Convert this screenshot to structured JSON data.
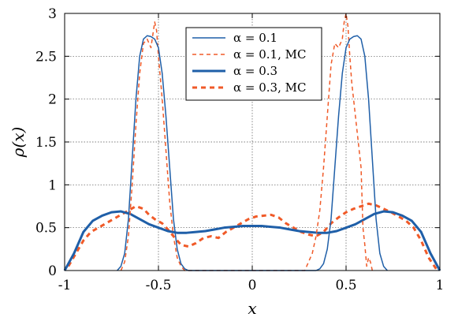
{
  "chart_data": {
    "type": "line",
    "xlabel": "x",
    "ylabel": "ρ(x)",
    "xlim": [
      -1,
      1
    ],
    "ylim": [
      0,
      3
    ],
    "x_ticks": [
      -1,
      -0.5,
      0,
      0.5,
      1
    ],
    "x_tick_labels": [
      "-1",
      "-0.5",
      "0",
      "0.5",
      "1"
    ],
    "y_ticks": [
      0,
      0.5,
      1,
      1.5,
      2,
      2.5,
      3
    ],
    "y_tick_labels": [
      "0",
      "0.5",
      "1",
      "1.5",
      "2",
      "2.5",
      "3"
    ],
    "grid": true,
    "legend_position": "top-center",
    "series": [
      {
        "name": "α = 0.1",
        "color": "#1f5fa8",
        "style": "solid-thin",
        "x": [
          -0.72,
          -0.7,
          -0.68,
          -0.66,
          -0.64,
          -0.62,
          -0.6,
          -0.58,
          -0.56,
          -0.54,
          -0.52,
          -0.5,
          -0.48,
          -0.46,
          -0.44,
          -0.42,
          -0.4,
          -0.38,
          -0.36,
          -0.34,
          0.34,
          0.36,
          0.38,
          0.4,
          0.42,
          0.44,
          0.46,
          0.48,
          0.5,
          0.52,
          0.54,
          0.56,
          0.58,
          0.6,
          0.62,
          0.64,
          0.66,
          0.68,
          0.7,
          0.72
        ],
        "y": [
          0,
          0.05,
          0.2,
          0.6,
          1.3,
          2.0,
          2.5,
          2.7,
          2.74,
          2.73,
          2.7,
          2.6,
          2.3,
          1.8,
          1.2,
          0.6,
          0.25,
          0.08,
          0.02,
          0,
          0,
          0.02,
          0.08,
          0.25,
          0.6,
          1.2,
          1.8,
          2.3,
          2.6,
          2.7,
          2.73,
          2.74,
          2.7,
          2.5,
          2.0,
          1.3,
          0.6,
          0.2,
          0.05,
          0
        ]
      },
      {
        "name": "α = 0.1, MC",
        "color": "#f05a28",
        "style": "dashed-thin",
        "x": [
          -0.7,
          -0.68,
          -0.66,
          -0.64,
          -0.62,
          -0.6,
          -0.58,
          -0.56,
          -0.54,
          -0.53,
          -0.52,
          -0.51,
          -0.5,
          -0.48,
          -0.46,
          -0.44,
          -0.42,
          -0.4,
          -0.38,
          -0.36,
          0.28,
          0.3,
          0.32,
          0.34,
          0.36,
          0.38,
          0.4,
          0.42,
          0.44,
          0.46,
          0.48,
          0.49,
          0.5,
          0.51,
          0.52,
          0.53,
          0.54,
          0.56,
          0.58,
          0.59,
          0.6,
          0.61,
          0.62,
          0.63,
          0.64
        ],
        "y": [
          0,
          0.1,
          0.4,
          1.0,
          1.7,
          2.3,
          2.65,
          2.7,
          2.6,
          2.75,
          2.9,
          2.8,
          2.5,
          2.0,
          1.4,
          0.8,
          0.4,
          0.15,
          0.05,
          0,
          0,
          0.1,
          0.2,
          0.4,
          0.7,
          1.2,
          1.8,
          2.4,
          2.65,
          2.6,
          2.7,
          2.9,
          3.0,
          2.85,
          2.5,
          2.2,
          2.0,
          1.6,
          1.2,
          0.5,
          0.3,
          0.05,
          0.15,
          0.1,
          0
        ]
      },
      {
        "name": "α = 0.3",
        "color": "#1f5fa8",
        "style": "solid-thick",
        "x": [
          -1,
          -0.95,
          -0.9,
          -0.85,
          -0.8,
          -0.75,
          -0.7,
          -0.65,
          -0.6,
          -0.55,
          -0.5,
          -0.45,
          -0.4,
          -0.35,
          -0.3,
          -0.25,
          -0.2,
          -0.15,
          -0.1,
          -0.05,
          0,
          0.05,
          0.1,
          0.15,
          0.2,
          0.25,
          0.3,
          0.35,
          0.4,
          0.45,
          0.5,
          0.55,
          0.6,
          0.65,
          0.7,
          0.75,
          0.8,
          0.85,
          0.9,
          0.95,
          1
        ],
        "y": [
          0,
          0.2,
          0.45,
          0.58,
          0.64,
          0.68,
          0.69,
          0.66,
          0.6,
          0.54,
          0.5,
          0.46,
          0.44,
          0.44,
          0.45,
          0.46,
          0.48,
          0.5,
          0.51,
          0.52,
          0.52,
          0.52,
          0.51,
          0.5,
          0.48,
          0.46,
          0.45,
          0.44,
          0.44,
          0.46,
          0.5,
          0.54,
          0.6,
          0.66,
          0.69,
          0.68,
          0.64,
          0.58,
          0.45,
          0.2,
          0
        ]
      },
      {
        "name": "α = 0.3, MC",
        "color": "#f05a28",
        "style": "dashed-thick",
        "x": [
          -0.98,
          -0.94,
          -0.9,
          -0.86,
          -0.82,
          -0.78,
          -0.74,
          -0.7,
          -0.66,
          -0.62,
          -0.58,
          -0.55,
          -0.52,
          -0.48,
          -0.45,
          -0.42,
          -0.38,
          -0.34,
          -0.3,
          -0.26,
          -0.22,
          -0.18,
          -0.14,
          -0.1,
          -0.06,
          -0.02,
          0.02,
          0.06,
          0.1,
          0.14,
          0.18,
          0.22,
          0.26,
          0.3,
          0.34,
          0.38,
          0.42,
          0.46,
          0.5,
          0.54,
          0.58,
          0.62,
          0.66,
          0.7,
          0.74,
          0.78,
          0.82,
          0.86,
          0.9,
          0.94,
          0.98
        ],
        "y": [
          0.05,
          0.2,
          0.35,
          0.45,
          0.5,
          0.55,
          0.6,
          0.65,
          0.7,
          0.75,
          0.72,
          0.65,
          0.6,
          0.55,
          0.48,
          0.4,
          0.3,
          0.28,
          0.32,
          0.38,
          0.4,
          0.38,
          0.45,
          0.5,
          0.55,
          0.6,
          0.63,
          0.64,
          0.65,
          0.62,
          0.55,
          0.5,
          0.45,
          0.42,
          0.4,
          0.45,
          0.55,
          0.62,
          0.68,
          0.72,
          0.75,
          0.78,
          0.76,
          0.72,
          0.68,
          0.63,
          0.58,
          0.5,
          0.35,
          0.15,
          0.02
        ]
      }
    ]
  }
}
